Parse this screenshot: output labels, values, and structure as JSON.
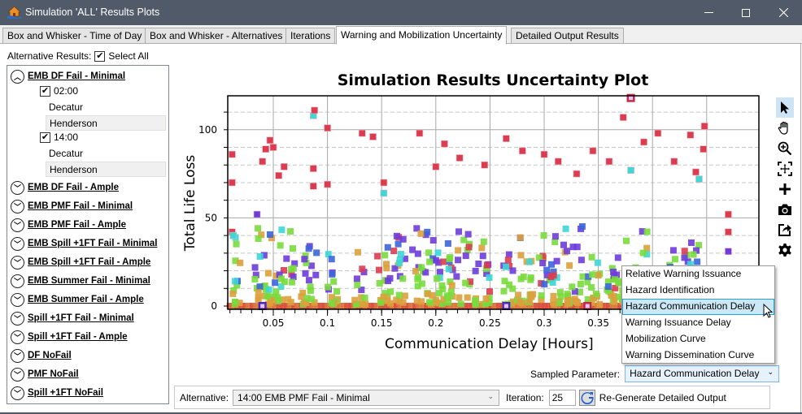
{
  "window": {
    "title": "Simulation 'ALL' Results Plots",
    "controls": [
      "minimize",
      "maximize",
      "close"
    ]
  },
  "tabs": [
    {
      "label": "Box and Whisker - Time of Day",
      "active": false
    },
    {
      "label": "Box and Whisker - Alternatives",
      "active": false
    },
    {
      "label": "Iterations",
      "active": false
    },
    {
      "label": "Warning and Mobilization Uncertainty",
      "active": true
    },
    {
      "label": "Detailed Output Results",
      "active": false
    }
  ],
  "alternative_results": {
    "label": "Alternative Results:",
    "select_all_label": "Select All",
    "select_all_checked": true
  },
  "sidebar": {
    "groups": [
      {
        "label": "EMB DF Fail - Minimal",
        "expanded": true,
        "times": [
          {
            "time": "02:00",
            "checked": true,
            "locations": [
              "Decatur",
              "Henderson"
            ]
          },
          {
            "time": "14:00",
            "checked": true,
            "locations": [
              "Decatur",
              "Henderson"
            ]
          }
        ]
      },
      {
        "label": "EMB DF Fail - Ample",
        "expanded": false
      },
      {
        "label": "EMB PMF Fail - Minimal",
        "expanded": false
      },
      {
        "label": "EMB PMF Fail - Ample",
        "expanded": false
      },
      {
        "label": "EMB Spill +1FT Fail - Minimal",
        "expanded": false
      },
      {
        "label": "EMB Spill +1FT Fail - Ample",
        "expanded": false
      },
      {
        "label": "EMB Summer Fail - Minimal",
        "expanded": false
      },
      {
        "label": "EMB Summer Fail - Ample",
        "expanded": false
      },
      {
        "label": "Spill +1FT Fail - Minimal",
        "expanded": false
      },
      {
        "label": "Spill +1FT Fail - Ample",
        "expanded": false
      },
      {
        "label": "DF NoFail",
        "expanded": false
      },
      {
        "label": "PMF NoFail",
        "expanded": false
      },
      {
        "label": "Spill +1FT NoFail",
        "expanded": false
      }
    ]
  },
  "chart_data": {
    "type": "scatter",
    "title": "Simulation Results Uncertainty Plot",
    "xlabel": "Communication Delay [Hours]",
    "ylabel": "Total Life Loss",
    "x_ticks": [
      0.05,
      0.1,
      0.15,
      0.2,
      0.25,
      0.3,
      0.35,
      0.4,
      0.45
    ],
    "x_tick_labels": [
      "0.05",
      "0.1",
      "0.15",
      "0.2",
      "0.25",
      "0.3",
      "0.35",
      "",
      ""
    ],
    "y_ticks": [
      0,
      50,
      100
    ],
    "xlim": [
      0.008,
      0.487
    ],
    "ylim": [
      -2,
      118
    ],
    "grid": true,
    "legend": "none",
    "colors": {
      "high": "#dc3c50",
      "cyan": "#3cd7d7",
      "purple": "#6e3cdc",
      "blue": "#3c64dc",
      "green": "#78dc3c",
      "orange": "#dca03c",
      "zero": "#dc503c",
      "zero_alt": "#dc783c",
      "highlight": "#5028b4"
    },
    "highlighted_points": [
      {
        "x": 0.04,
        "y": 0,
        "color": "#5028b4"
      },
      {
        "x": 0.265,
        "y": 0,
        "color": "#5028b4"
      },
      {
        "x": 0.34,
        "y": 0,
        "color": "#c82846"
      },
      {
        "x": 0.38,
        "y": 118,
        "color": "#c82846"
      }
    ],
    "sample_points": [
      {
        "x": 0.012,
        "y": 86,
        "c": "high"
      },
      {
        "x": 0.012,
        "y": 70,
        "c": "high"
      },
      {
        "x": 0.012,
        "y": 42,
        "c": "high"
      },
      {
        "x": 0.013,
        "y": 40,
        "c": "cyan"
      },
      {
        "x": 0.035,
        "y": 52,
        "c": "purple"
      },
      {
        "x": 0.04,
        "y": 82,
        "c": "high"
      },
      {
        "x": 0.043,
        "y": 89,
        "c": "high"
      },
      {
        "x": 0.047,
        "y": 94,
        "c": "high"
      },
      {
        "x": 0.05,
        "y": 90,
        "c": "high"
      },
      {
        "x": 0.055,
        "y": 74,
        "c": "high"
      },
      {
        "x": 0.06,
        "y": 79,
        "c": "high"
      },
      {
        "x": 0.087,
        "y": 108,
        "c": "cyan"
      },
      {
        "x": 0.088,
        "y": 111,
        "c": "high"
      },
      {
        "x": 0.087,
        "y": 78,
        "c": "high"
      },
      {
        "x": 0.087,
        "y": 68,
        "c": "high"
      },
      {
        "x": 0.1,
        "y": 101,
        "c": "high"
      },
      {
        "x": 0.1,
        "y": 69,
        "c": "high"
      },
      {
        "x": 0.132,
        "y": 98,
        "c": "high"
      },
      {
        "x": 0.142,
        "y": 96,
        "c": "high"
      },
      {
        "x": 0.152,
        "y": 70,
        "c": "high"
      },
      {
        "x": 0.152,
        "y": 64,
        "c": "cyan"
      },
      {
        "x": 0.185,
        "y": 98,
        "c": "high"
      },
      {
        "x": 0.2,
        "y": 79,
        "c": "high"
      },
      {
        "x": 0.208,
        "y": 92,
        "c": "high"
      },
      {
        "x": 0.222,
        "y": 84,
        "c": "high"
      },
      {
        "x": 0.245,
        "y": 80,
        "c": "high"
      },
      {
        "x": 0.265,
        "y": 95,
        "c": "high"
      },
      {
        "x": 0.28,
        "y": 88,
        "c": "high"
      },
      {
        "x": 0.3,
        "y": 86,
        "c": "high"
      },
      {
        "x": 0.313,
        "y": 82,
        "c": "high"
      },
      {
        "x": 0.33,
        "y": 75,
        "c": "high"
      },
      {
        "x": 0.345,
        "y": 88,
        "c": "high"
      },
      {
        "x": 0.36,
        "y": 82,
        "c": "high"
      },
      {
        "x": 0.373,
        "y": 107,
        "c": "high"
      },
      {
        "x": 0.38,
        "y": 77,
        "c": "cyan"
      },
      {
        "x": 0.392,
        "y": 93,
        "c": "high"
      },
      {
        "x": 0.405,
        "y": 98,
        "c": "high"
      },
      {
        "x": 0.42,
        "y": 82,
        "c": "high"
      },
      {
        "x": 0.435,
        "y": 97,
        "c": "high"
      },
      {
        "x": 0.44,
        "y": 76,
        "c": "high"
      },
      {
        "x": 0.448,
        "y": 102,
        "c": "high"
      },
      {
        "x": 0.447,
        "y": 89,
        "c": "high"
      },
      {
        "x": 0.443,
        "y": 72,
        "c": "cyan"
      },
      {
        "x": 0.47,
        "y": 52,
        "c": "high"
      },
      {
        "x": 0.47,
        "y": 42,
        "c": "high"
      },
      {
        "x": 0.47,
        "y": 31,
        "c": "purple"
      }
    ],
    "dense_columns": [
      {
        "x0": 0.011,
        "x1": 0.02,
        "ymax": 40
      },
      {
        "x0": 0.033,
        "x1": 0.07,
        "ymax": 45
      },
      {
        "x0": 0.075,
        "x1": 0.09,
        "ymax": 38
      },
      {
        "x0": 0.1,
        "x1": 0.11,
        "ymax": 30
      },
      {
        "x0": 0.125,
        "x1": 0.135,
        "ymax": 36
      },
      {
        "x0": 0.145,
        "x1": 0.172,
        "ymax": 40
      },
      {
        "x0": 0.178,
        "x1": 0.208,
        "ymax": 45
      },
      {
        "x0": 0.21,
        "x1": 0.232,
        "ymax": 42
      },
      {
        "x0": 0.236,
        "x1": 0.25,
        "ymax": 36
      },
      {
        "x0": 0.262,
        "x1": 0.272,
        "ymax": 30
      },
      {
        "x0": 0.275,
        "x1": 0.29,
        "ymax": 42
      },
      {
        "x0": 0.295,
        "x1": 0.316,
        "ymax": 40
      },
      {
        "x0": 0.318,
        "x1": 0.336,
        "ymax": 45
      },
      {
        "x0": 0.34,
        "x1": 0.352,
        "ymax": 30
      },
      {
        "x0": 0.357,
        "x1": 0.376,
        "ymax": 40
      },
      {
        "x0": 0.383,
        "x1": 0.4,
        "ymax": 42
      },
      {
        "x0": 0.41,
        "x1": 0.422,
        "ymax": 32
      },
      {
        "x0": 0.428,
        "x1": 0.448,
        "ymax": 35
      }
    ]
  },
  "toolbar": {
    "tools": [
      {
        "name": "pointer-icon",
        "active": true
      },
      {
        "name": "pan-hand-icon",
        "active": false
      },
      {
        "name": "zoom-in-icon",
        "active": false
      },
      {
        "name": "zoom-extents-icon",
        "active": false
      },
      {
        "name": "crosshair-add-icon",
        "active": false
      },
      {
        "name": "camera-icon",
        "active": false
      },
      {
        "name": "export-icon",
        "active": false
      },
      {
        "name": "settings-gear-icon",
        "active": false
      }
    ]
  },
  "sampled_parameter": {
    "label": "Sampled Parameter:",
    "value": "Hazard Communication Delay",
    "options": [
      "Relative Warning Issuance",
      "Hazard Identification",
      "Hazard Communication Delay",
      "Warning Issuance Delay",
      "Mobilization Curve",
      "Warning Dissemination Curve"
    ],
    "highlighted_index": 2
  },
  "bottom": {
    "alternative_label": "Alternative:",
    "alternative_value": "14:00 EMB PMF Fail - Minimal",
    "iteration_label": "Iteration:",
    "iteration_value": "25",
    "regen_label": "Re-Generate Detailed Output"
  }
}
